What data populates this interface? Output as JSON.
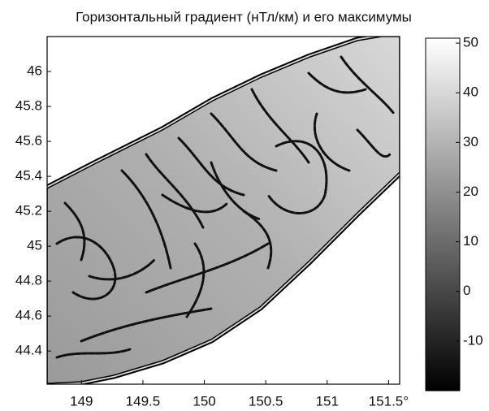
{
  "chart_data": {
    "type": "heatmap",
    "title": "Горизонтальный градиент (нТл/км) и его максимумы",
    "xlim": [
      148.72,
      151.59
    ],
    "xticks": [
      149,
      149.5,
      150,
      150.5,
      151,
      {
        "value": 151.5,
        "label": "151.5°"
      }
    ],
    "ylim": [
      44.21,
      46.2
    ],
    "yticks": [
      44.4,
      44.6,
      44.8,
      45,
      45.2,
      45.4,
      45.6,
      45.8,
      46
    ],
    "colorbar": {
      "clim": [
        -20,
        51
      ],
      "ticks": [
        -10,
        0,
        10,
        20,
        30,
        40,
        50
      ]
    }
  }
}
